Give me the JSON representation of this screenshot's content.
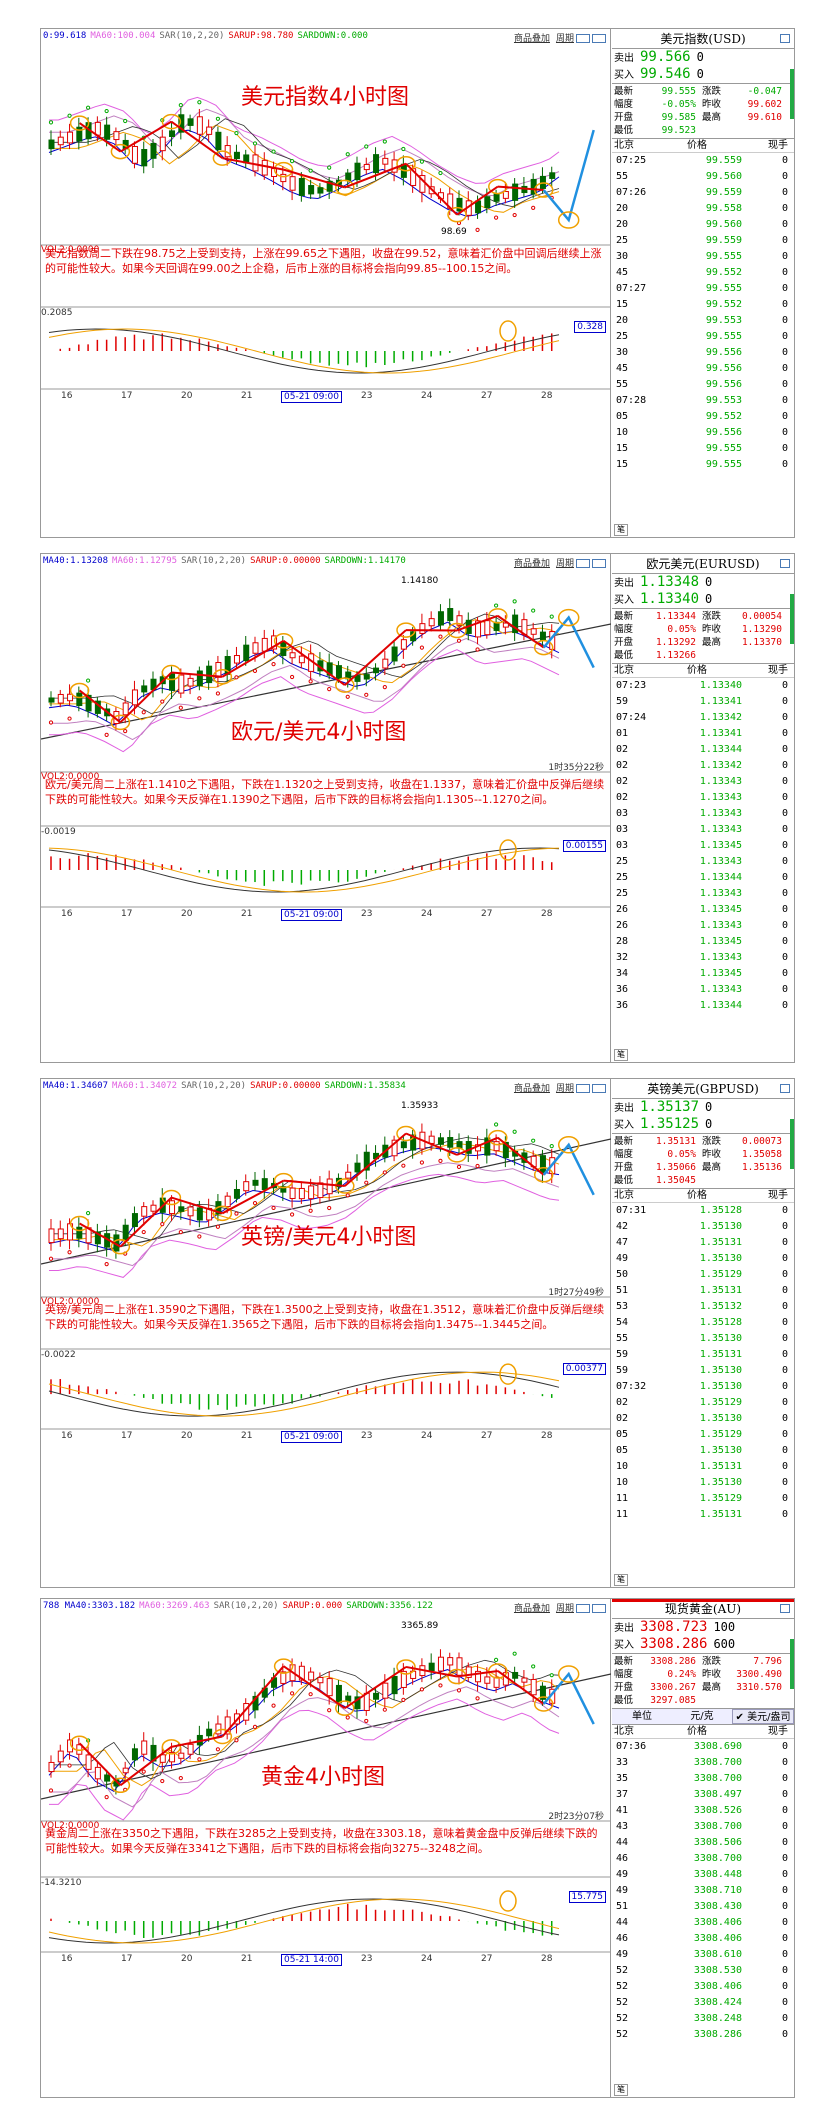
{
  "toolbar": {
    "add_label": "商品叠加",
    "period_label": "周期"
  },
  "panels": [
    {
      "indicators": [
        {
          "text": "0:99.618",
          "color": "blue"
        },
        {
          "text": "MA60:100.004",
          "color": "pink"
        },
        {
          "text": "SAR(10,2,20)",
          "color": "gray"
        },
        {
          "text": "SARUP:98.780",
          "color": "red"
        },
        {
          "text": "SARDOWN:0.000",
          "color": "green"
        }
      ],
      "chart_title": "美元指数4小时图",
      "low_mark": "98.69",
      "high_mark": "",
      "vol_label": "VOL2:0.0000",
      "comment": "美元指数周二下跌在98.75之上受到支持，上涨在99.65之下遇阻，收盘在99.52，意味着汇价盘中回调后继续上涨的可能性较大。如果今天回调在99.00之上企稳，后市上涨的目标将会指向99.85--100.15之间。",
      "macd_label": "0.2085",
      "macd_value": "0.328",
      "timer": "",
      "dates": [
        "16",
        "17",
        "20",
        "21",
        "05-21 09:00",
        "23",
        "24",
        "27",
        "28"
      ],
      "side": {
        "title": "美元指数(USD)",
        "sell_label": "卖出",
        "sell_price": "99.566",
        "sell_qty": "0",
        "buy_label": "买入",
        "buy_price": "99.546",
        "buy_qty": "0",
        "stats": [
          [
            "最新",
            "99.555",
            "涨跌",
            "-0.047"
          ],
          [
            "幅度",
            "-0.05%",
            "昨收",
            "99.602"
          ],
          [
            "开盘",
            "99.585",
            "最高",
            "99.610"
          ],
          [
            "最低",
            "99.523",
            "",
            ""
          ]
        ],
        "tick_head": [
          "北京",
          "价格",
          "现手"
        ],
        "ticks": [
          [
            "07:25",
            "99.559",
            "0"
          ],
          [
            "55",
            "99.560",
            "0"
          ],
          [
            "07:26",
            "99.559",
            "0"
          ],
          [
            "20",
            "99.558",
            "0"
          ],
          [
            "20",
            "99.560",
            "0"
          ],
          [
            "25",
            "99.559",
            "0"
          ],
          [
            "30",
            "99.555",
            "0"
          ],
          [
            "45",
            "99.552",
            "0"
          ],
          [
            "07:27",
            "99.555",
            "0"
          ],
          [
            "15",
            "99.552",
            "0"
          ],
          [
            "20",
            "99.553",
            "0"
          ],
          [
            "25",
            "99.555",
            "0"
          ],
          [
            "30",
            "99.556",
            "0"
          ],
          [
            "45",
            "99.556",
            "0"
          ],
          [
            "55",
            "99.556",
            "0"
          ],
          [
            "07:28",
            "99.553",
            "0"
          ],
          [
            "05",
            "99.552",
            "0"
          ],
          [
            "10",
            "99.556",
            "0"
          ],
          [
            "15",
            "99.555",
            "0"
          ],
          [
            "15",
            "99.555",
            "0"
          ]
        ]
      }
    },
    {
      "indicators": [
        {
          "text": "MA40:1.13208",
          "color": "blue"
        },
        {
          "text": "MA60:1.12795",
          "color": "pink"
        },
        {
          "text": "SAR(10,2,20)",
          "color": "gray"
        },
        {
          "text": "SARUP:0.00000",
          "color": "red"
        },
        {
          "text": "SARDOWN:1.14170",
          "color": "green"
        }
      ],
      "chart_title": "欧元/美元4小时图",
      "low_mark": "",
      "high_mark": "1.14180",
      "vol_label": "VOL2:0.0000",
      "comment": "欧元/美元周二上涨在1.1410之下遇阻，下跌在1.1320之上受到支持，收盘在1.1337，意味着汇价盘中反弹后继续下跌的可能性较大。如果今天反弹在1.1390之下遇阻，后市下跌的目标将会指向1.1305--1.1270之间。",
      "macd_label": "-0.0019",
      "macd_value": "0.00155",
      "timer": "1时35分22秒",
      "dates": [
        "16",
        "17",
        "20",
        "21",
        "05-21 09:00",
        "23",
        "24",
        "27",
        "28"
      ],
      "side": {
        "title": "欧元美元(EURUSD)",
        "sell_label": "卖出",
        "sell_price": "1.13348",
        "sell_qty": "0",
        "buy_label": "买入",
        "buy_price": "1.13340",
        "buy_qty": "0",
        "stats": [
          [
            "最新",
            "1.13344",
            "涨跌",
            "0.00054"
          ],
          [
            "幅度",
            "0.05%",
            "昨收",
            "1.13290"
          ],
          [
            "开盘",
            "1.13292",
            "最高",
            "1.13370"
          ],
          [
            "最低",
            "1.13266",
            "",
            ""
          ]
        ],
        "tick_head": [
          "北京",
          "价格",
          "现手"
        ],
        "ticks": [
          [
            "07:23",
            "1.13340",
            "0"
          ],
          [
            "59",
            "1.13341",
            "0"
          ],
          [
            "07:24",
            "1.13342",
            "0"
          ],
          [
            "01",
            "1.13341",
            "0"
          ],
          [
            "02",
            "1.13344",
            "0"
          ],
          [
            "02",
            "1.13342",
            "0"
          ],
          [
            "02",
            "1.13343",
            "0"
          ],
          [
            "02",
            "1.13343",
            "0"
          ],
          [
            "03",
            "1.13343",
            "0"
          ],
          [
            "03",
            "1.13343",
            "0"
          ],
          [
            "03",
            "1.13345",
            "0"
          ],
          [
            "25",
            "1.13343",
            "0"
          ],
          [
            "25",
            "1.13344",
            "0"
          ],
          [
            "25",
            "1.13343",
            "0"
          ],
          [
            "26",
            "1.13345",
            "0"
          ],
          [
            "26",
            "1.13343",
            "0"
          ],
          [
            "28",
            "1.13345",
            "0"
          ],
          [
            "32",
            "1.13343",
            "0"
          ],
          [
            "34",
            "1.13345",
            "0"
          ],
          [
            "36",
            "1.13343",
            "0"
          ],
          [
            "36",
            "1.13344",
            "0"
          ]
        ]
      }
    },
    {
      "indicators": [
        {
          "text": "MA40:1.34607",
          "color": "blue"
        },
        {
          "text": "MA60:1.34072",
          "color": "pink"
        },
        {
          "text": "SAR(10,2,20)",
          "color": "gray"
        },
        {
          "text": "SARUP:0.00000",
          "color": "red"
        },
        {
          "text": "SARDOWN:1.35834",
          "color": "green"
        }
      ],
      "chart_title": "英镑/美元4小时图",
      "low_mark": "",
      "high_mark": "1.35933",
      "vol_label": "VOL2:0.0000",
      "comment": "英镑/美元周二上涨在1.3590之下遇阻，下跌在1.3500之上受到支持，收盘在1.3512，意味着汇价盘中反弹后继续下跌的可能性较大。如果今天反弹在1.3565之下遇阻，后市下跌的目标将会指向1.3475--1.3445之间。",
      "macd_label": "-0.0022",
      "macd_value": "0.00377",
      "timer": "1时27分49秒",
      "dates": [
        "16",
        "17",
        "20",
        "21",
        "05-21 09:00",
        "23",
        "24",
        "27",
        "28"
      ],
      "side": {
        "title": "英镑美元(GBPUSD)",
        "sell_label": "卖出",
        "sell_price": "1.35137",
        "sell_qty": "0",
        "buy_label": "买入",
        "buy_price": "1.35125",
        "buy_qty": "0",
        "stats": [
          [
            "最新",
            "1.35131",
            "涨跌",
            "0.00073"
          ],
          [
            "幅度",
            "0.05%",
            "昨收",
            "1.35058"
          ],
          [
            "开盘",
            "1.35066",
            "最高",
            "1.35136"
          ],
          [
            "最低",
            "1.35045",
            "",
            ""
          ]
        ],
        "tick_head": [
          "北京",
          "价格",
          "现手"
        ],
        "ticks": [
          [
            "07:31",
            "1.35128",
            "0"
          ],
          [
            "42",
            "1.35130",
            "0"
          ],
          [
            "47",
            "1.35131",
            "0"
          ],
          [
            "49",
            "1.35130",
            "0"
          ],
          [
            "50",
            "1.35129",
            "0"
          ],
          [
            "51",
            "1.35131",
            "0"
          ],
          [
            "53",
            "1.35132",
            "0"
          ],
          [
            "54",
            "1.35128",
            "0"
          ],
          [
            "55",
            "1.35130",
            "0"
          ],
          [
            "59",
            "1.35131",
            "0"
          ],
          [
            "59",
            "1.35130",
            "0"
          ],
          [
            "07:32",
            "1.35130",
            "0"
          ],
          [
            "02",
            "1.35129",
            "0"
          ],
          [
            "02",
            "1.35130",
            "0"
          ],
          [
            "05",
            "1.35129",
            "0"
          ],
          [
            "05",
            "1.35130",
            "0"
          ],
          [
            "10",
            "1.35131",
            "0"
          ],
          [
            "10",
            "1.35130",
            "0"
          ],
          [
            "11",
            "1.35129",
            "0"
          ],
          [
            "11",
            "1.35131",
            "0"
          ]
        ]
      }
    },
    {
      "indicators": [
        {
          "text": "788 MA40:3303.182",
          "color": "blue"
        },
        {
          "text": "MA60:3269.463",
          "color": "pink"
        },
        {
          "text": "SAR(10,2,20)",
          "color": "gray"
        },
        {
          "text": "SARUP:0.000",
          "color": "red"
        },
        {
          "text": "SARDOWN:3356.122",
          "color": "green"
        }
      ],
      "chart_title": "黄金4小时图",
      "low_mark": "",
      "high_mark": "3365.89",
      "vol_label": "VOL2:0.0000",
      "comment": "黄金周二上涨在3350之下遇阻，下跌在3285之上受到支持，收盘在3303.18，意味着黄金盘中反弹后继续下跌的可能性较大。如果今天反弹在3341之下遇阻，后市下跌的目标将会指向3275--3248之间。",
      "macd_label": "-14.3210",
      "macd_value": "15.775",
      "timer": "2时23分07秒",
      "dates": [
        "16",
        "17",
        "20",
        "21",
        "05-21 14:00",
        "23",
        "24",
        "27",
        "28"
      ],
      "side": {
        "title": "现货黄金(AU)",
        "sell_label": "卖出",
        "sell_price": "3308.723",
        "sell_qty": "100",
        "buy_label": "买入",
        "buy_price": "3308.286",
        "buy_qty": "600",
        "stats": [
          [
            "最新",
            "3308.286",
            "涨跌",
            "7.796"
          ],
          [
            "幅度",
            "0.24%",
            "昨收",
            "3300.490"
          ],
          [
            "开盘",
            "3300.267",
            "最高",
            "3310.570"
          ],
          [
            "最低",
            "3297.085",
            "",
            ""
          ]
        ],
        "unit_bar": [
          "单位",
          "元/克",
          "✔ 美元/盎司"
        ],
        "tick_head": [
          "北京",
          "价格",
          "现手"
        ],
        "ticks": [
          [
            "07:36",
            "3308.690",
            "0"
          ],
          [
            "33",
            "3308.700",
            "0"
          ],
          [
            "35",
            "3308.700",
            "0"
          ],
          [
            "37",
            "3308.497",
            "0"
          ],
          [
            "41",
            "3308.526",
            "0"
          ],
          [
            "43",
            "3308.700",
            "0"
          ],
          [
            "44",
            "3308.506",
            "0"
          ],
          [
            "46",
            "3308.700",
            "0"
          ],
          [
            "49",
            "3308.448",
            "0"
          ],
          [
            "49",
            "3308.710",
            "0"
          ],
          [
            "51",
            "3308.430",
            "0"
          ],
          [
            "44",
            "3308.406",
            "0"
          ],
          [
            "46",
            "3308.406",
            "0"
          ],
          [
            "49",
            "3308.610",
            "0"
          ],
          [
            "52",
            "3308.530",
            "0"
          ],
          [
            "52",
            "3308.406",
            "0"
          ],
          [
            "52",
            "3308.424",
            "0"
          ],
          [
            "52",
            "3308.248",
            "0"
          ],
          [
            "52",
            "3308.286",
            "0"
          ]
        ]
      }
    }
  ],
  "bottom_tab": "笔",
  "colors": {
    "red": "#e00000",
    "green": "#00aa00",
    "blue": "#0000cc",
    "pink": "#e060e0",
    "orange": "#f0a000",
    "arrow_blue": "#2090e0"
  }
}
